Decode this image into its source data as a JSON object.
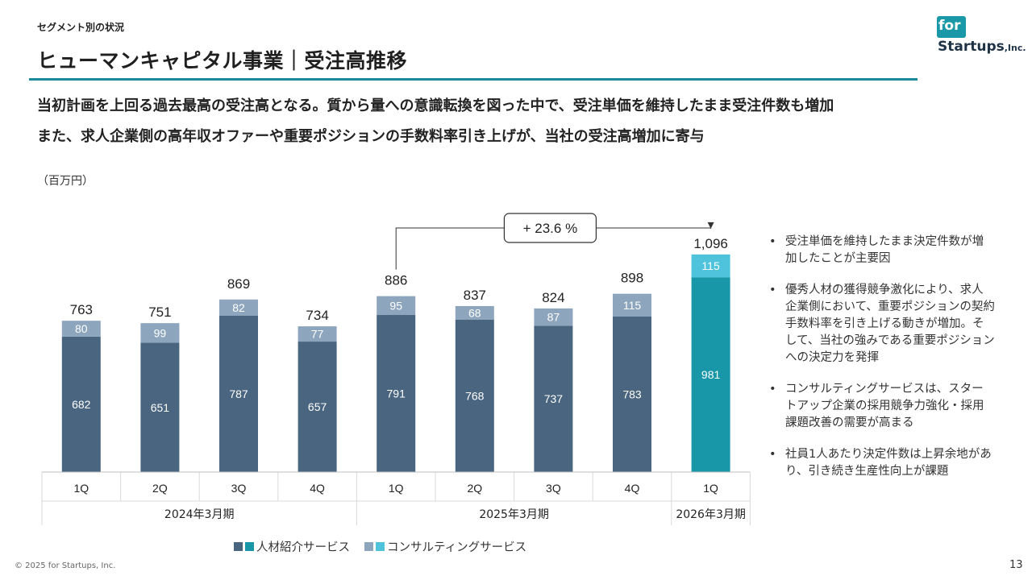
{
  "header": {
    "section_label": "セグメント別の状況",
    "title": "ヒューマンキャピタル事業｜受注高推移"
  },
  "logo": {
    "word1": "for",
    "word2": "Startups",
    "suffix": ",Inc."
  },
  "headline": {
    "line1": "当初計画を上回る過去最高の受注高となる。質から量への意識転換を図った中で、受注単価を維持したまま受注件数も増加",
    "line2": "また、求人企業側の高年収オファーや重要ポジションの手数料率引き上げが、当社の受注高増加に寄与"
  },
  "unit_label": "（百万円）",
  "colors": {
    "placement_past": "#4a6580",
    "consulting_past": "#8ea6bd",
    "placement_current": "#1797a8",
    "consulting_current": "#4fc3dc",
    "accent_rule": "#1b8a9a"
  },
  "chart_data": {
    "type": "bar",
    "stacked": true,
    "categories": [
      "1Q",
      "2Q",
      "3Q",
      "4Q",
      "1Q",
      "2Q",
      "3Q",
      "4Q",
      "1Q"
    ],
    "periods": [
      {
        "label": "2024年3月期",
        "count": 4
      },
      {
        "label": "2025年3月期",
        "count": 4
      },
      {
        "label": "2026年3月期",
        "count": 1
      }
    ],
    "series": [
      {
        "name": "人材紹介サービス",
        "values": [
          682,
          651,
          787,
          657,
          791,
          768,
          737,
          783,
          981
        ]
      },
      {
        "name": "コンサルティングサービス",
        "values": [
          80,
          99,
          82,
          77,
          95,
          68,
          87,
          115,
          115
        ]
      }
    ],
    "totals": [
      "763",
      "751",
      "869",
      "734",
      "886",
      "837",
      "824",
      "898",
      "1,096"
    ],
    "highlight_index": 8,
    "growth_annotation": {
      "from_index": 4,
      "to_index": 8,
      "label": "+ 23.6 %"
    },
    "ylim": [
      0,
      1100
    ],
    "legend_position": "bottom"
  },
  "legend": {
    "items": [
      {
        "label": "人材紹介サービス"
      },
      {
        "label": "コンサルティングサービス"
      }
    ]
  },
  "notes": [
    "受注単価を維持したまま決定件数が増加したことが主要因",
    "優秀人材の獲得競争激化により、求人企業側において、重要ポジションの契約手数料率を引き上げる動きが増加。そして、当社の強みである重要ポジションへの決定力を発揮",
    "コンサルティングサービスは、スタートアップ企業の採用競争力強化・採用課題改善の需要が高まる",
    "社員1人あたり決定件数は上昇余地があり、引き続き生産性向上が課題"
  ],
  "footer": {
    "copyright": "© 2025 for Startups, Inc.",
    "page": "13"
  }
}
